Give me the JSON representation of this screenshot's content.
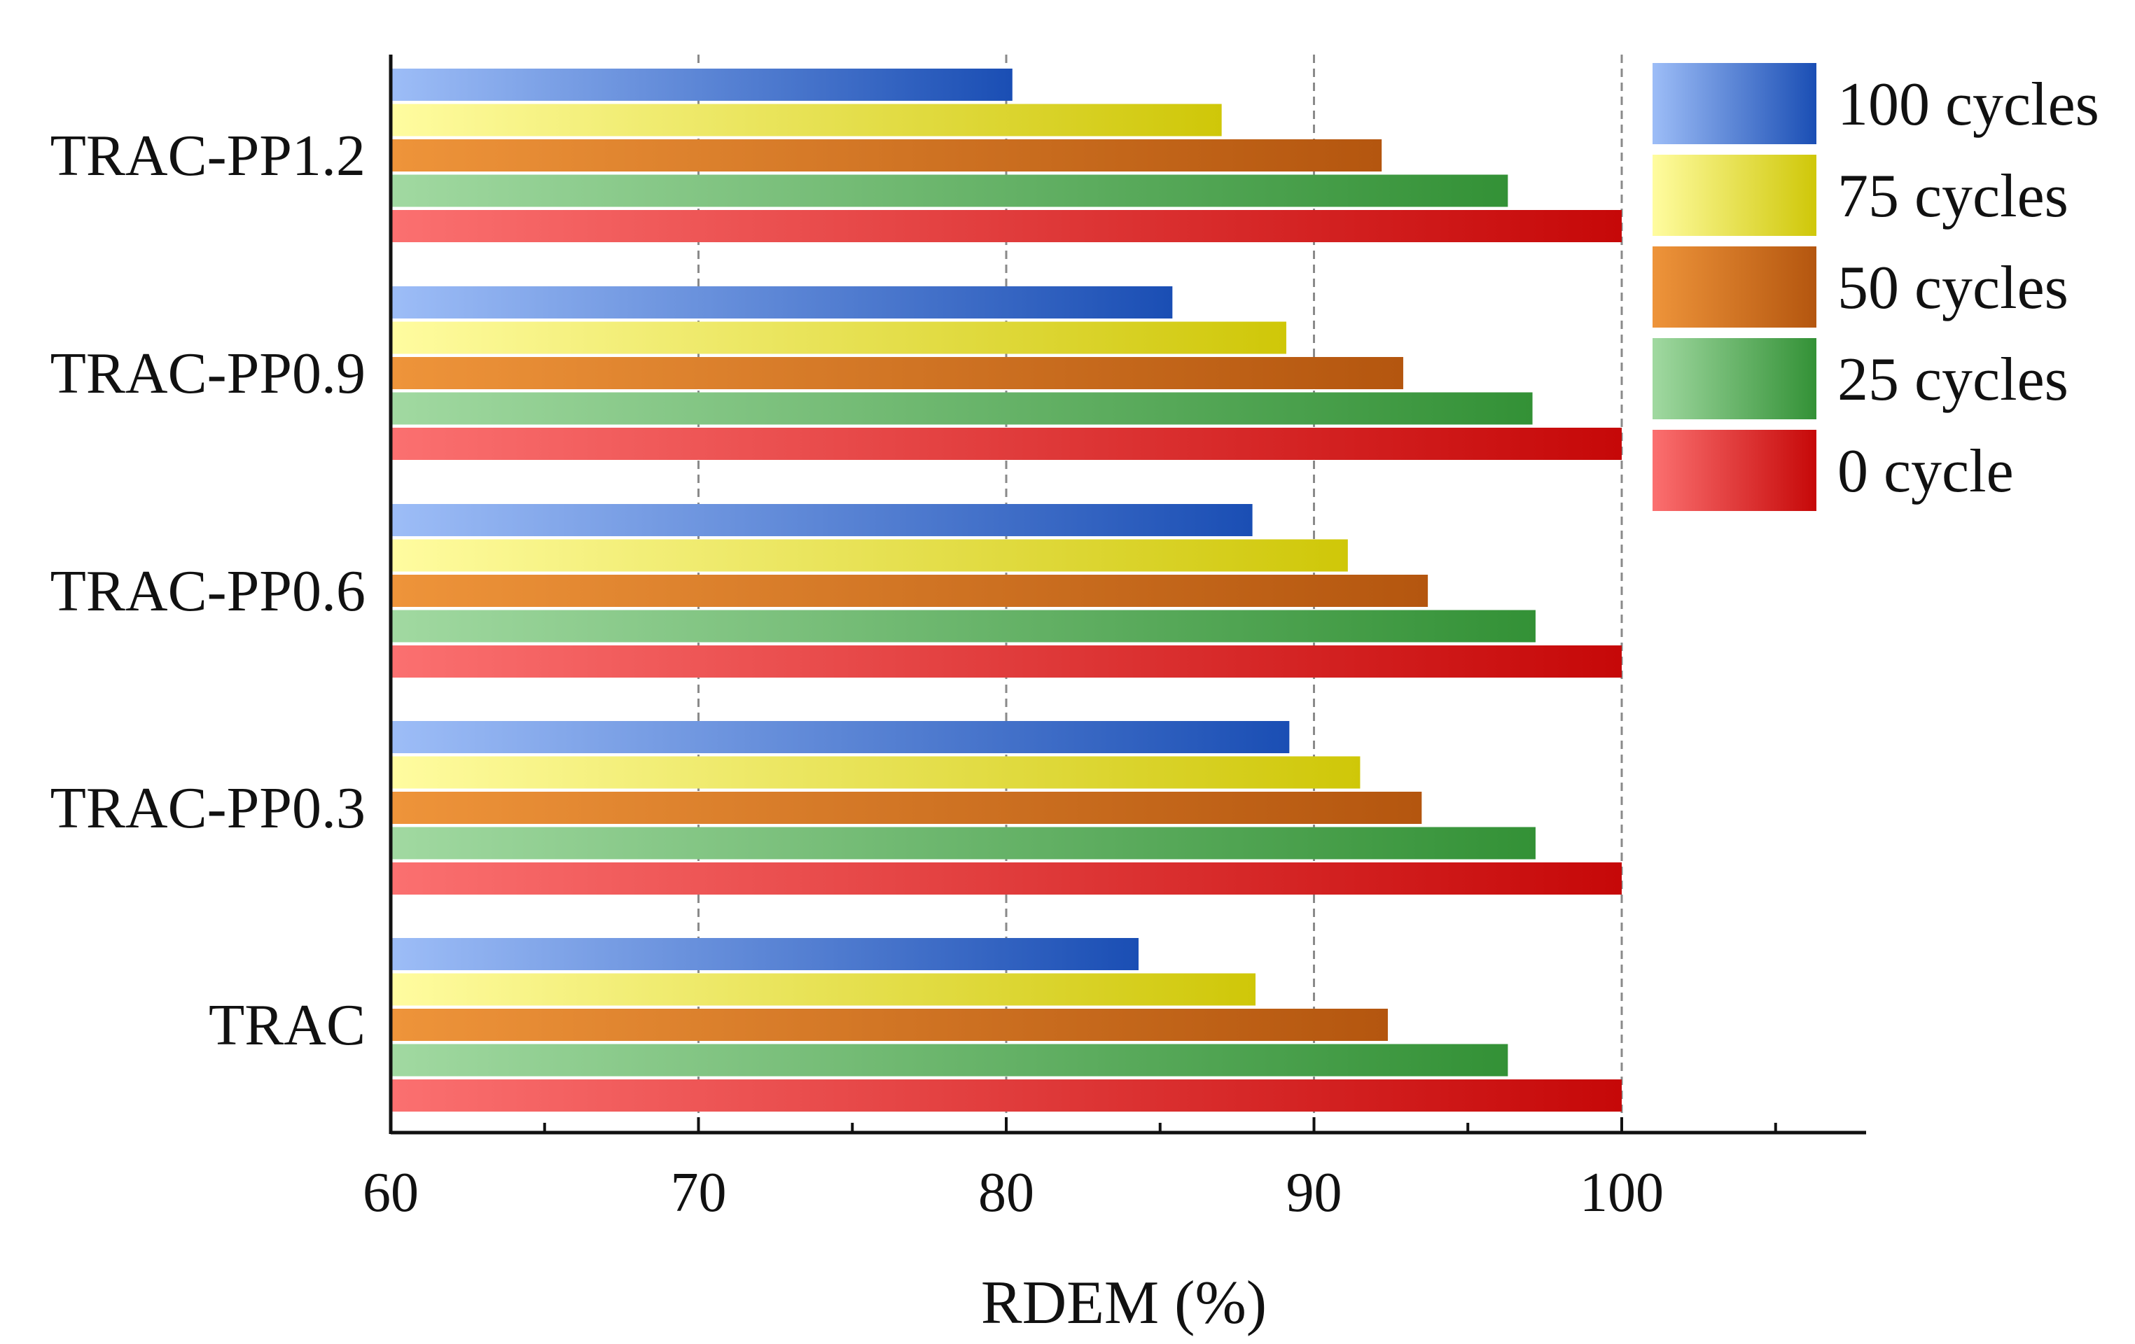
{
  "chart_data": {
    "type": "bar",
    "orientation": "horizontal",
    "title": "",
    "xlabel": "RDEM (%)",
    "ylabel": "",
    "xlim": [
      60,
      108
    ],
    "xticks": [
      60,
      70,
      80,
      90,
      100
    ],
    "grid": "vertical dashed at 70, 80, 90, 100",
    "legend_position": "top-right",
    "categories": [
      "TRAC-PP1.2",
      "TRAC-PP0.9",
      "TRAC-PP0.6",
      "TRAC-PP0.3",
      "TRAC"
    ],
    "series": [
      {
        "name": "100 cycles",
        "values": [
          80.2,
          85.4,
          88.0,
          89.2,
          84.3
        ],
        "color_light": "#9dbdf7",
        "color_dark": "#1a4eb4"
      },
      {
        "name": "75 cycles",
        "values": [
          87.0,
          89.1,
          91.1,
          91.5,
          88.1
        ],
        "color_light": "#fffca0",
        "color_dark": "#cfc708"
      },
      {
        "name": "50 cycles",
        "values": [
          92.2,
          92.9,
          93.7,
          93.5,
          92.4
        ],
        "color_light": "#ee943a",
        "color_dark": "#b4560f"
      },
      {
        "name": "25 cycles",
        "values": [
          96.3,
          97.1,
          97.2,
          97.2,
          96.3
        ],
        "color_light": "#a1d9a1",
        "color_dark": "#339136"
      },
      {
        "name": "0 cycle",
        "values": [
          100.0,
          100.0,
          100.0,
          100.0,
          100.0
        ],
        "color_light": "#fb7070",
        "color_dark": "#c60808"
      }
    ]
  }
}
